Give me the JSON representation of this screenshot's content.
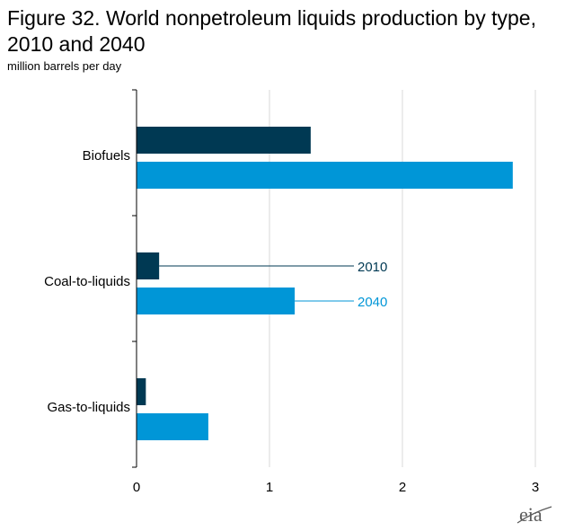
{
  "title": "Figure 32. World nonpetroleum liquids production by type, 2010 and 2040",
  "subtitle": "million barrels per day",
  "logo_text": "eia",
  "colors": {
    "2010": "#003953",
    "2040": "#0096d7",
    "grid": "#d9d9d9",
    "axis": "#000000"
  },
  "chart_data": {
    "type": "bar",
    "orientation": "horizontal",
    "title": "Figure 32. World nonpetroleum liquids production by type, 2010 and 2040",
    "subtitle": "million barrels per day",
    "categories": [
      "Biofuels",
      "Coal-to-liquids",
      "Gas-to-liquids"
    ],
    "series": [
      {
        "name": "2010",
        "values": [
          1.31,
          0.17,
          0.07
        ]
      },
      {
        "name": "2040",
        "values": [
          2.83,
          1.19,
          0.54
        ]
      }
    ],
    "xlim": [
      0,
      3
    ],
    "xticks": [
      "0",
      "1",
      "2",
      "3"
    ],
    "grid": true,
    "legend": "inline labels next to Coal-to-liquids bars"
  }
}
